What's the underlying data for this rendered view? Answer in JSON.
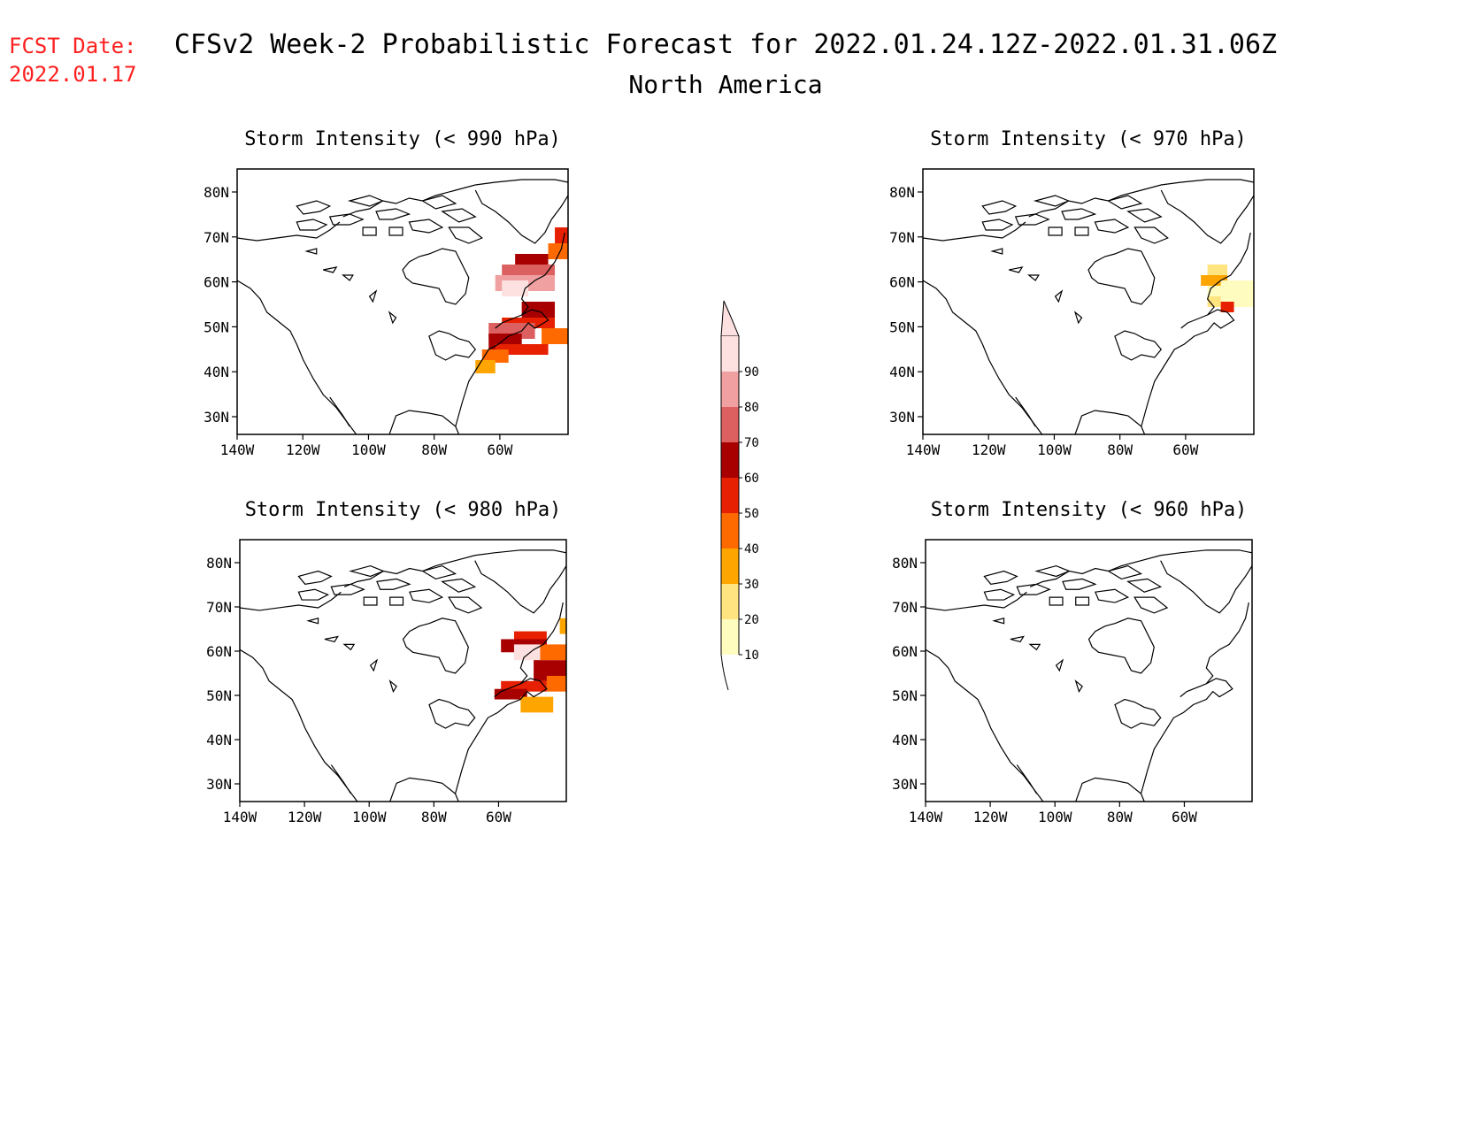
{
  "header": {
    "fcst_label": "FCST Date:",
    "fcst_date": "2022.01.17",
    "title": "CFSv2 Week-2 Probabilistic Forecast for 2022.01.24.12Z-2022.01.31.06Z",
    "subtitle": "North America"
  },
  "lat_ticks": [
    "80N",
    "70N",
    "60N",
    "50N",
    "40N",
    "30N"
  ],
  "lon_ticks": [
    "140W",
    "120W",
    "100W",
    "80W",
    "60W"
  ],
  "panels": [
    {
      "id": "p990",
      "title": "Storm Intensity (< 990 hPa)"
    },
    {
      "id": "p970",
      "title": "Storm Intensity (< 970 hPa)"
    },
    {
      "id": "p980",
      "title": "Storm Intensity (< 980 hPa)"
    },
    {
      "id": "p960",
      "title": "Storm Intensity (< 960 hPa)"
    }
  ],
  "colorbar": {
    "levels": [
      "10",
      "20",
      "30",
      "40",
      "50",
      "60",
      "70",
      "80",
      "90"
    ],
    "colors": [
      "#fffcc0",
      "#ffe480",
      "#ffa500",
      "#ff6a00",
      "#e62000",
      "#a80000",
      "#dc6060",
      "#f0a0a0",
      "#fde0e0"
    ]
  }
}
